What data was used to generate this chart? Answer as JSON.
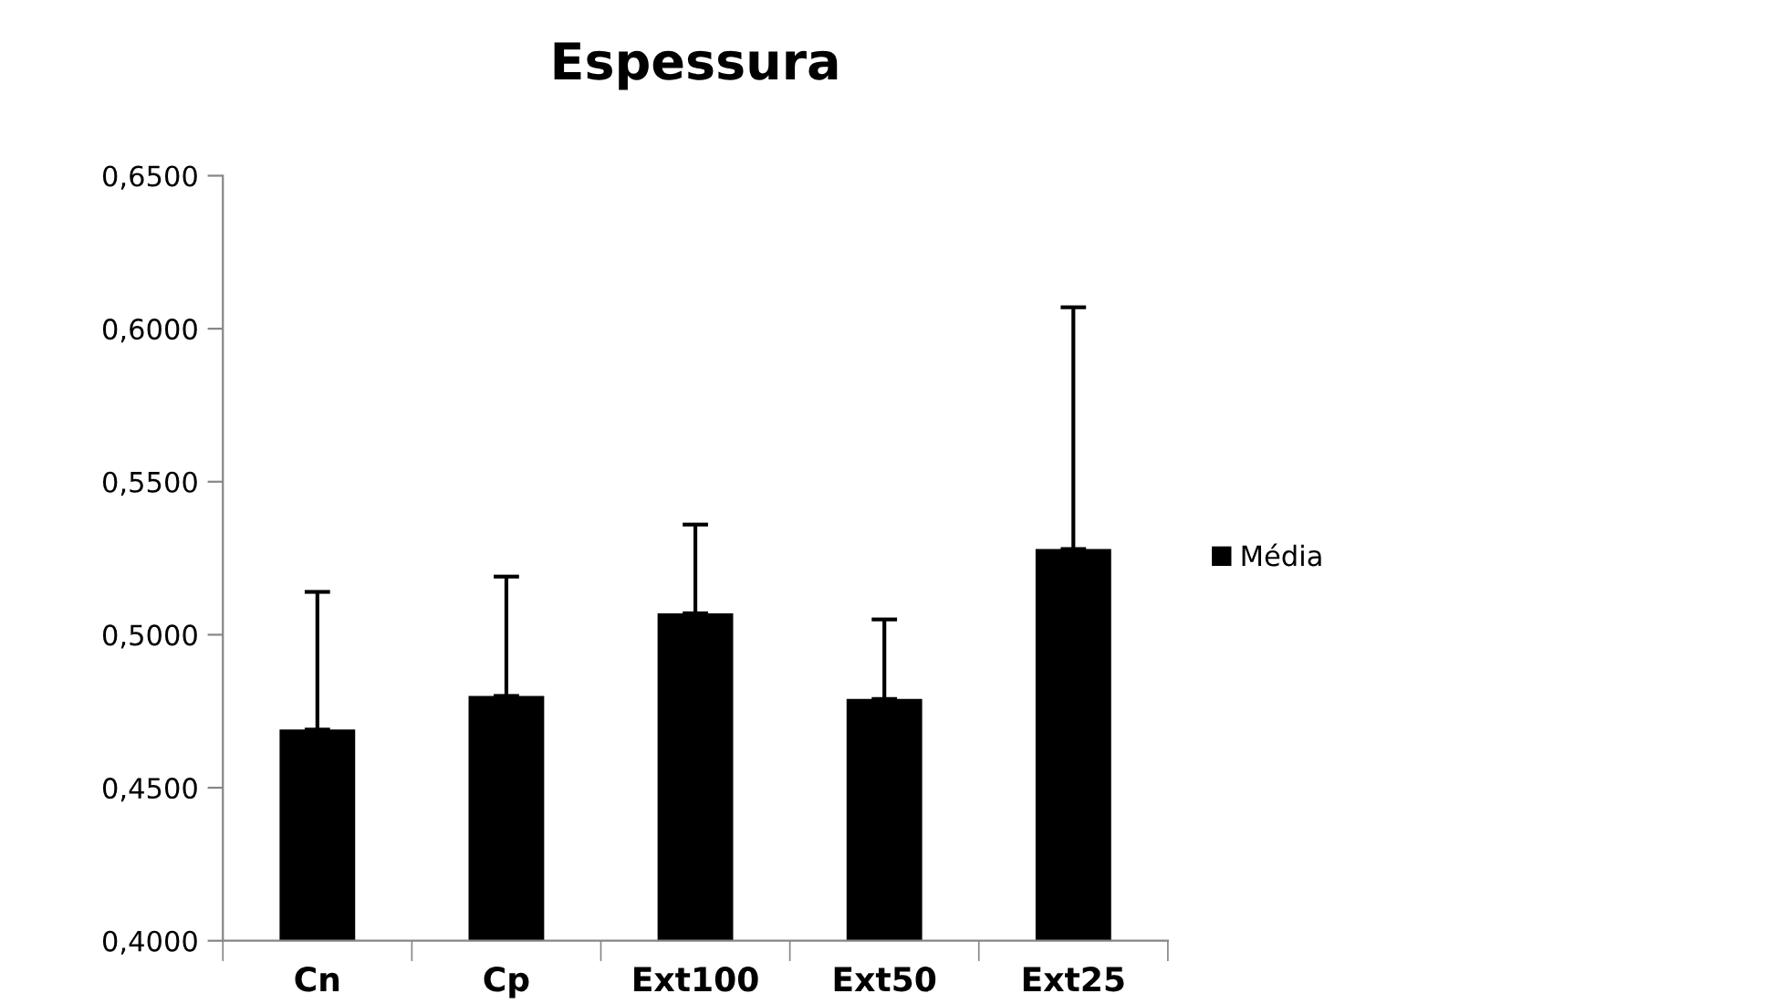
{
  "chart_data": {
    "type": "bar",
    "title": "Espessura",
    "categories": [
      "Cn",
      "Cp",
      "Ext100",
      "Ext50",
      "Ext25"
    ],
    "series": [
      {
        "name": "Média",
        "color": "#000000",
        "values": [
          0.469,
          0.48,
          0.507,
          0.479,
          0.528
        ],
        "errors": [
          [
            0.469,
            0.514
          ],
          [
            0.48,
            0.519
          ],
          [
            0.507,
            0.536
          ],
          [
            0.479,
            0.505
          ],
          [
            0.528,
            0.607
          ]
        ]
      }
    ],
    "ylim": [
      0.4,
      0.65
    ],
    "yticks": [
      {
        "value": 0.4,
        "label": "0,4000"
      },
      {
        "value": 0.45,
        "label": "0,4500"
      },
      {
        "value": 0.5,
        "label": "0,5000"
      },
      {
        "value": 0.55,
        "label": "0,5500"
      },
      {
        "value": 0.6,
        "label": "0,6000"
      },
      {
        "value": 0.65,
        "label": "0,6500"
      }
    ],
    "legend": "right",
    "grid": false
  }
}
